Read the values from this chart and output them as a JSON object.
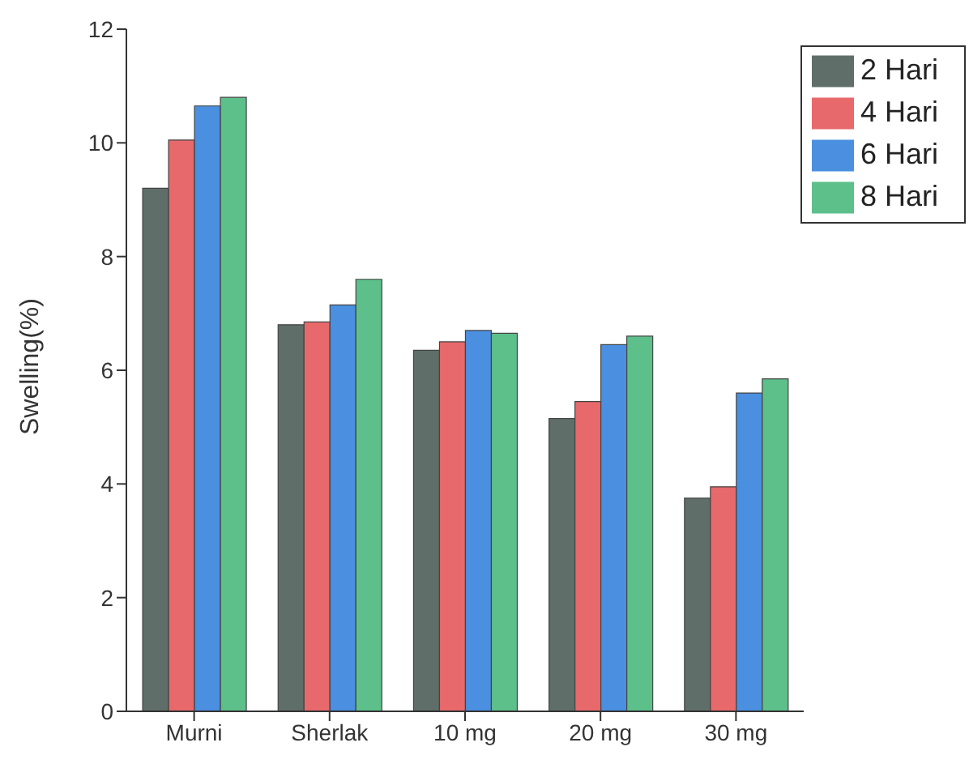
{
  "chart_data": {
    "type": "bar",
    "ylabel": "Swelling(%)",
    "categories": [
      "Murni",
      "Sherlak",
      "10 mg",
      "20 mg",
      "30 mg"
    ],
    "series": [
      {
        "name": "2 Hari",
        "color": "#5f6e68",
        "values": [
          9.2,
          6.8,
          6.35,
          5.15,
          3.75
        ]
      },
      {
        "name": "4 Hari",
        "color": "#e8696b",
        "values": [
          10.05,
          6.85,
          6.5,
          5.45,
          3.95
        ]
      },
      {
        "name": "6 Hari",
        "color": "#4a8fe0",
        "values": [
          10.65,
          7.15,
          6.7,
          6.45,
          5.6
        ]
      },
      {
        "name": "8 Hari",
        "color": "#5dbf8a",
        "values": [
          10.8,
          7.6,
          6.65,
          6.6,
          5.85
        ]
      }
    ],
    "ylim": [
      0,
      12
    ],
    "yticks": [
      0,
      2,
      4,
      6,
      8,
      10,
      12
    ],
    "grid": false,
    "legend": "top right"
  }
}
